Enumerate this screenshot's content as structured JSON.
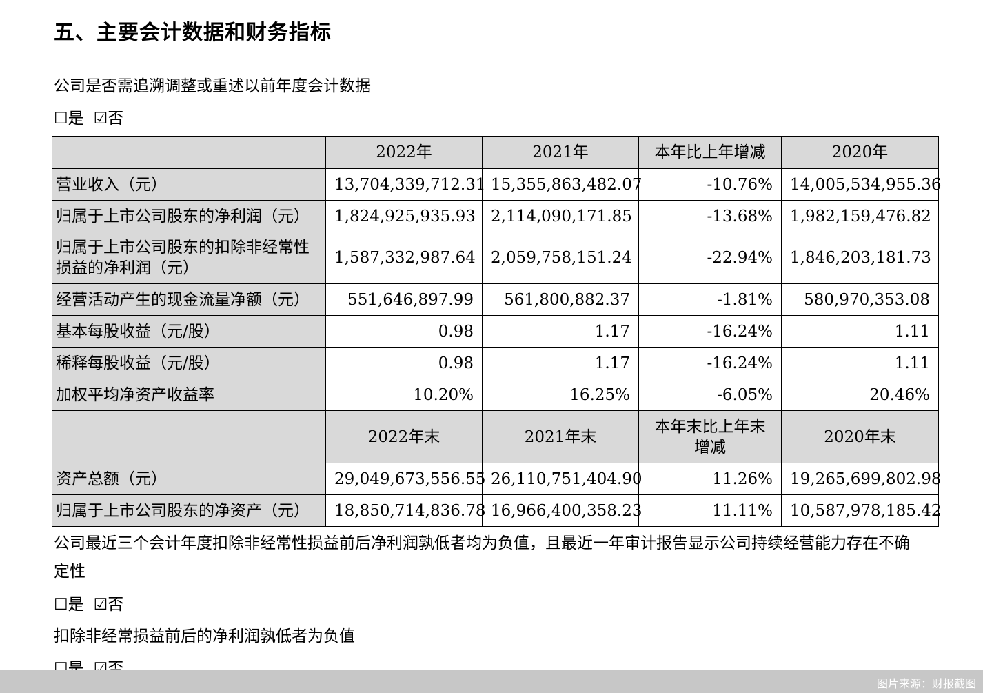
{
  "title": "五、主要会计数据和财务指标",
  "q1": {
    "text": "公司是否需追溯调整或重述以前年度会计数据",
    "yes": "☐是",
    "no": "☑否"
  },
  "table": {
    "header1": [
      "",
      "2022年",
      "2021年",
      "本年比上年增减",
      "2020年"
    ],
    "rows1": [
      {
        "label": "营业收入（元）",
        "values": [
          "13,704,339,712.31",
          "15,355,863,482.07",
          "-10.76%",
          "14,005,534,955.36"
        ]
      },
      {
        "label": "归属于上市公司股东的净利润（元）",
        "values": [
          "1,824,925,935.93",
          "2,114,090,171.85",
          "-13.68%",
          "1,982,159,476.82"
        ]
      },
      {
        "label": "归属于上市公司股东的扣除非经常性损益的净利润（元）",
        "values": [
          "1,587,332,987.64",
          "2,059,758,151.24",
          "-22.94%",
          "1,846,203,181.73"
        ]
      },
      {
        "label": "经营活动产生的现金流量净额（元）",
        "values": [
          "551,646,897.99",
          "561,800,882.37",
          "-1.81%",
          "580,970,353.08"
        ]
      },
      {
        "label": "基本每股收益（元/股）",
        "values": [
          "0.98",
          "1.17",
          "-16.24%",
          "1.11"
        ]
      },
      {
        "label": "稀释每股收益（元/股）",
        "values": [
          "0.98",
          "1.17",
          "-16.24%",
          "1.11"
        ]
      },
      {
        "label": "加权平均净资产收益率",
        "values": [
          "10.20%",
          "16.25%",
          "-6.05%",
          "20.46%"
        ]
      }
    ],
    "header2": [
      "",
      "2022年末",
      "2021年末",
      "本年末比上年末增减",
      "2020年末"
    ],
    "rows2": [
      {
        "label": "资产总额（元）",
        "values": [
          "29,049,673,556.55",
          "26,110,751,404.90",
          "11.26%",
          "19,265,699,802.98"
        ]
      },
      {
        "label": "归属于上市公司股东的净资产（元）",
        "values": [
          "18,850,714,836.78",
          "16,966,400,358.23",
          "11.11%",
          "10,587,978,185.42"
        ]
      }
    ]
  },
  "q2": {
    "text": "公司最近三个会计年度扣除非经常性损益前后净利润孰低者均为负值，且最近一年审计报告显示公司持续经营能力存在不确定性",
    "yes": "☐是",
    "no": "☑否"
  },
  "q3": {
    "text": "扣除非经常损益前后的净利润孰低者为负值",
    "yes": "☐是",
    "no": "☑否"
  },
  "source": "图片来源：财报截图"
}
